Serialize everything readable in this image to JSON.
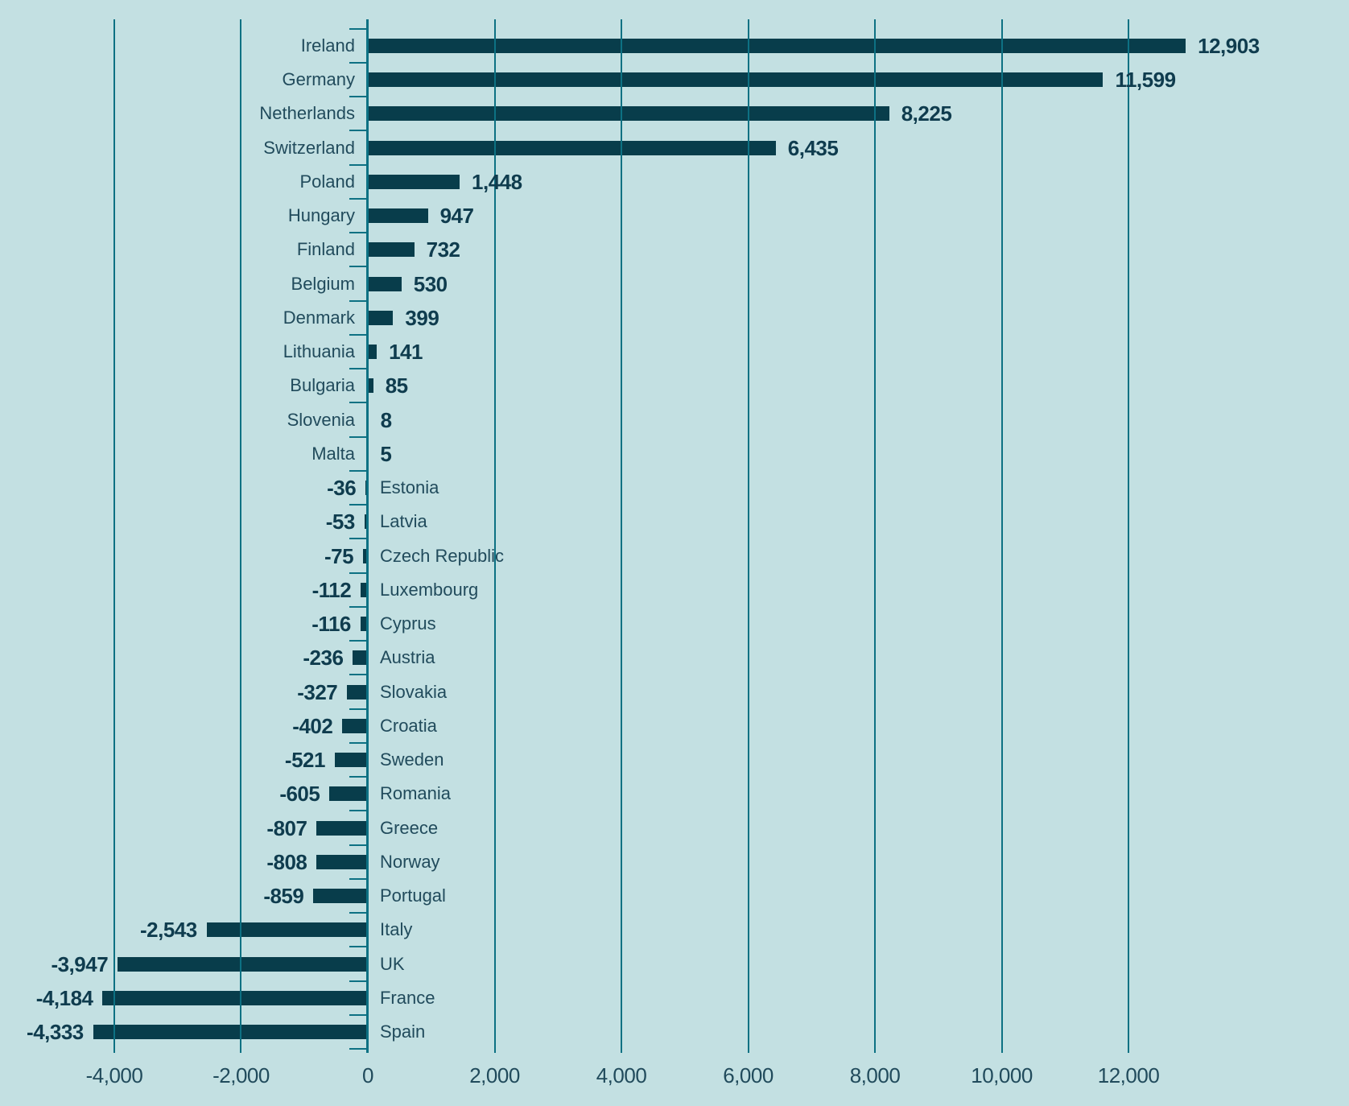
{
  "chart_data": {
    "type": "bar",
    "orientation": "horizontal",
    "title": "",
    "categories": [
      "Ireland",
      "Germany",
      "Netherlands",
      "Switzerland",
      "Poland",
      "Hungary",
      "Finland",
      "Belgium",
      "Denmark",
      "Lithuania",
      "Bulgaria",
      "Slovenia",
      "Malta",
      "Estonia",
      "Latvia",
      "Czech Republic",
      "Luxembourg",
      "Cyprus",
      "Austria",
      "Slovakia",
      "Croatia",
      "Sweden",
      "Romania",
      "Greece",
      "Norway",
      "Portugal",
      "Italy",
      "UK",
      "France",
      "Spain"
    ],
    "values": [
      12903,
      11599,
      8225,
      6435,
      1448,
      947,
      732,
      530,
      399,
      141,
      85,
      8,
      5,
      -36,
      -53,
      -75,
      -112,
      -116,
      -236,
      -327,
      -402,
      -521,
      -605,
      -807,
      -808,
      -859,
      -2543,
      -3947,
      -4184,
      -4333
    ],
    "value_labels": [
      "12,903",
      "11,599",
      "8,225",
      "6,435",
      "1,448",
      "947",
      "732",
      "530",
      "399",
      "141",
      "85",
      "8",
      "5",
      "-36",
      "-53",
      "-75",
      "-112",
      "-116",
      "-236",
      "-327",
      "-402",
      "-521",
      "-605",
      "-807",
      "-808",
      "-859",
      "-2,543",
      "-3,947",
      "-4,184",
      "-4,333"
    ],
    "x_ticks": [
      {
        "value": -4000,
        "label": "-4,000"
      },
      {
        "value": -2000,
        "label": "-2,000"
      },
      {
        "value": 0,
        "label": "0"
      },
      {
        "value": 2000,
        "label": "2,000"
      },
      {
        "value": 4000,
        "label": "4,000"
      },
      {
        "value": 6000,
        "label": "6,000"
      },
      {
        "value": 8000,
        "label": "8,000"
      },
      {
        "value": 10000,
        "label": "10,000"
      },
      {
        "value": 12000,
        "label": "12,000"
      },
      {
        "value": 14000,
        "label": ""
      }
    ],
    "xlim": [
      -5803,
      15479
    ],
    "grid": true,
    "legend": "none",
    "colors": {
      "background": "#c3e0e2",
      "bar": "#083d4b",
      "gridline": "#0d7183",
      "category_tick": "#0d7183",
      "value_text": "#0f3c4e",
      "category_text": "#214b5c",
      "tick_text": "#214b5c"
    }
  }
}
